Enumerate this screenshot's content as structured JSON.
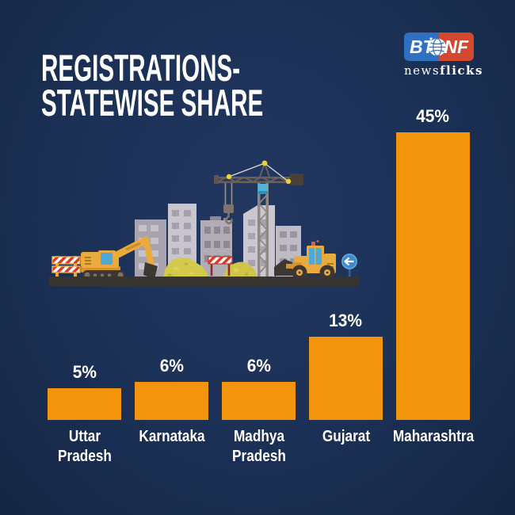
{
  "meta": {
    "background": "#1b3055",
    "accent_orange": "#f2940c",
    "text_color": "#ffffff"
  },
  "title": {
    "lines": [
      "REGISTRATIONS-",
      "STATEWISE SHARE"
    ]
  },
  "logo": {
    "left": "BT",
    "right": "NF",
    "tagline_regular": "news",
    "tagline_bold": "flicks",
    "blue": "#2f70c2",
    "red": "#d2492f"
  },
  "chart_data": {
    "type": "bar",
    "title": "REGISTRATIONS- STATEWISE SHARE",
    "categories": [
      "Uttar Pradesh",
      "Karnataka",
      "Madhya Pradesh",
      "Gujarat",
      "Maharashtra"
    ],
    "values": [
      5,
      6,
      6,
      13,
      45
    ],
    "value_labels": [
      "5%",
      "6%",
      "6%",
      "13%",
      "45%"
    ],
    "category_lines": [
      [
        "Uttar",
        "Pradesh"
      ],
      [
        "Karnataka"
      ],
      [
        "Madhya",
        "Pradesh"
      ],
      [
        "Gujarat"
      ],
      [
        "Maharashtra"
      ]
    ],
    "unit": "%",
    "bar_color": "#f2940c",
    "label_color": "#ffffff",
    "xlabel": "",
    "ylabel": "",
    "ylim": [
      0,
      47
    ],
    "grid": false,
    "legend": "none"
  },
  "illustration": {
    "name": "construction-site",
    "elements": [
      "buildings",
      "tower-crane",
      "crane-hook",
      "excavator",
      "wheel-loader",
      "sand-piles",
      "striped-barriers",
      "left-arrow-road-sign"
    ]
  }
}
